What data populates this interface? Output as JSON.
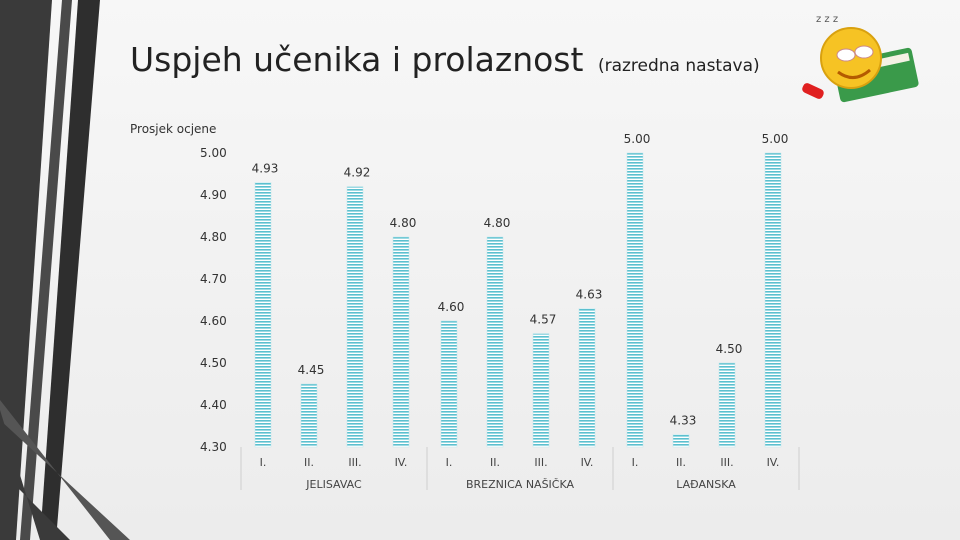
{
  "page": {
    "title": "Uspjeh učenika i prolaznost",
    "subtitle": "(razredna nastava)"
  },
  "chart_data": {
    "type": "bar",
    "title": "Uspjeh učenika i prolaznost (razredna nastava)",
    "ylabel": "Prosjek ocjene",
    "ylim": [
      4.3,
      5.0
    ],
    "yticks": [
      "5.00",
      "4.90",
      "4.80",
      "4.70",
      "4.60",
      "4.50",
      "4.40",
      "4.30"
    ],
    "grid": false,
    "groups": [
      {
        "name": "JELISAVAC",
        "categories": [
          "I.",
          "II.",
          "III.",
          "IV."
        ],
        "values": [
          4.93,
          4.45,
          4.92,
          4.8
        ]
      },
      {
        "name": "BREZNICA NAŠIČKA",
        "categories": [
          "I.",
          "II.",
          "III.",
          "IV."
        ],
        "values": [
          4.6,
          4.8,
          4.57,
          4.63
        ]
      },
      {
        "name": "LAĐANSKA",
        "categories": [
          "I.",
          "II.",
          "III.",
          "IV."
        ],
        "values": [
          5.0,
          4.33,
          4.5,
          5.0
        ]
      }
    ],
    "value_labels": [
      [
        "4.93",
        "4.45",
        "4.92",
        "4.80"
      ],
      [
        "4.60",
        "4.80",
        "4.57",
        "4.63"
      ],
      [
        "5.00",
        "4.33",
        "4.50",
        "5.00"
      ]
    ],
    "bar_color": "#5bc0cf"
  },
  "decor": {
    "mascot_icon": "smiley-reading-book-icon",
    "sleep_letters": "z z z"
  }
}
